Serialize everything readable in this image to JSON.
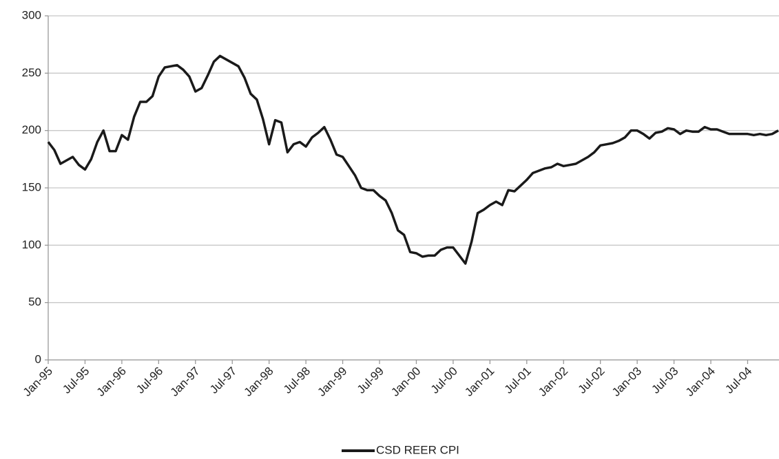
{
  "chart_data": {
    "type": "line",
    "categories": [
      "Jan-95",
      null,
      null,
      null,
      null,
      null,
      "Jul-95",
      null,
      null,
      null,
      null,
      null,
      "Jan-96",
      null,
      null,
      null,
      null,
      null,
      "Jul-96",
      null,
      null,
      null,
      null,
      null,
      "Jan-97",
      null,
      null,
      null,
      null,
      null,
      "Jul-97",
      null,
      null,
      null,
      null,
      null,
      "Jan-98",
      null,
      null,
      null,
      null,
      null,
      "Jul-98",
      null,
      null,
      null,
      null,
      null,
      "Jan-99",
      null,
      null,
      null,
      null,
      null,
      "Jul-99",
      null,
      null,
      null,
      null,
      null,
      "Jan-00",
      null,
      null,
      null,
      null,
      null,
      "Jul-00",
      null,
      null,
      null,
      null,
      null,
      "Jan-01",
      null,
      null,
      null,
      null,
      null,
      "Jul-01",
      null,
      null,
      null,
      null,
      null,
      "Jan-02",
      null,
      null,
      null,
      null,
      null,
      "Jul-02",
      null,
      null,
      null,
      null,
      null,
      "Jan-03",
      null,
      null,
      null,
      null,
      null,
      "Jul-03",
      null,
      null,
      null,
      null,
      null,
      "Jan-04",
      null,
      null,
      null,
      null,
      null,
      "Jul-04",
      null,
      null,
      null,
      null,
      null
    ],
    "series": [
      {
        "name": "CSD REER CPI",
        "color": "#1a1a1a",
        "values": [
          190,
          183,
          171,
          174,
          177,
          170,
          166,
          175,
          190,
          200,
          182,
          182,
          196,
          192,
          212,
          225,
          225,
          230,
          247,
          255,
          256,
          257,
          253,
          247,
          234,
          237,
          248,
          260,
          265,
          262,
          259,
          256,
          246,
          232,
          227,
          210,
          188,
          209,
          207,
          181,
          188,
          190,
          186,
          194,
          198,
          203,
          192,
          179,
          177,
          169,
          161,
          150,
          148,
          148,
          143,
          139,
          128,
          113,
          109,
          94,
          93,
          90,
          91,
          91,
          96,
          98,
          98,
          91,
          84,
          103,
          128,
          131,
          135,
          138,
          135,
          148,
          147,
          152,
          157,
          163,
          165,
          167,
          168,
          171,
          169,
          170,
          171,
          174,
          177,
          181,
          187,
          188,
          189,
          191,
          194,
          200,
          200,
          197,
          193,
          198,
          199,
          202,
          201,
          197,
          200,
          199,
          199,
          203,
          201,
          201,
          199,
          197,
          197,
          197,
          197,
          196,
          197,
          196,
          197,
          200
        ]
      }
    ],
    "ylim": [
      0,
      300
    ],
    "yticks": [
      0,
      50,
      100,
      150,
      200,
      250,
      300
    ],
    "grid": true,
    "legend": "bottom"
  }
}
